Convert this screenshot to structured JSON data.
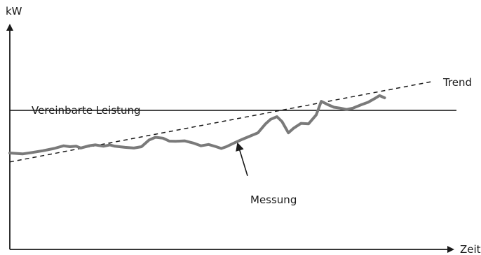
{
  "chart_data": {
    "type": "line",
    "y_axis_label": "kW",
    "x_axis_label": "Zeit",
    "reference_line": {
      "label": "Vereinbarte Leistung",
      "value": 6.2
    },
    "trend": {
      "label": "Trend",
      "start": {
        "x": 0,
        "y": 3.9
      },
      "end": {
        "x": 6.7,
        "y": 7.5
      }
    },
    "measurement": {
      "label": "Messung",
      "points": [
        [
          0.0,
          4.3
        ],
        [
          0.2,
          4.26
        ],
        [
          0.35,
          4.32
        ],
        [
          0.52,
          4.4
        ],
        [
          0.7,
          4.5
        ],
        [
          0.85,
          4.62
        ],
        [
          0.95,
          4.58
        ],
        [
          1.05,
          4.6
        ],
        [
          1.12,
          4.52
        ],
        [
          1.25,
          4.62
        ],
        [
          1.35,
          4.66
        ],
        [
          1.48,
          4.6
        ],
        [
          1.58,
          4.66
        ],
        [
          1.66,
          4.6
        ],
        [
          1.82,
          4.55
        ],
        [
          1.96,
          4.52
        ],
        [
          2.08,
          4.58
        ],
        [
          2.2,
          4.88
        ],
        [
          2.3,
          5.0
        ],
        [
          2.42,
          4.96
        ],
        [
          2.52,
          4.83
        ],
        [
          2.62,
          4.82
        ],
        [
          2.76,
          4.84
        ],
        [
          2.9,
          4.74
        ],
        [
          3.02,
          4.62
        ],
        [
          3.14,
          4.68
        ],
        [
          3.26,
          4.58
        ],
        [
          3.34,
          4.5
        ],
        [
          3.42,
          4.58
        ],
        [
          3.54,
          4.74
        ],
        [
          3.68,
          4.92
        ],
        [
          3.8,
          5.06
        ],
        [
          3.92,
          5.2
        ],
        [
          4.04,
          5.6
        ],
        [
          4.12,
          5.8
        ],
        [
          4.22,
          5.92
        ],
        [
          4.3,
          5.7
        ],
        [
          4.4,
          5.2
        ],
        [
          4.48,
          5.4
        ],
        [
          4.6,
          5.62
        ],
        [
          4.72,
          5.6
        ],
        [
          4.84,
          6.0
        ],
        [
          4.92,
          6.6
        ],
        [
          5.02,
          6.46
        ],
        [
          5.12,
          6.34
        ],
        [
          5.22,
          6.3
        ],
        [
          5.32,
          6.24
        ],
        [
          5.42,
          6.3
        ],
        [
          5.56,
          6.46
        ],
        [
          5.66,
          6.56
        ],
        [
          5.76,
          6.72
        ],
        [
          5.84,
          6.86
        ],
        [
          5.92,
          6.76
        ]
      ]
    },
    "annotation": {
      "label": "Messung",
      "arrow_target": {
        "x": 3.6,
        "y": 4.9
      }
    },
    "xlim": [
      0,
      7.0
    ],
    "ylim": [
      0,
      10.0
    ],
    "grid": false,
    "ticks_shown": false
  }
}
